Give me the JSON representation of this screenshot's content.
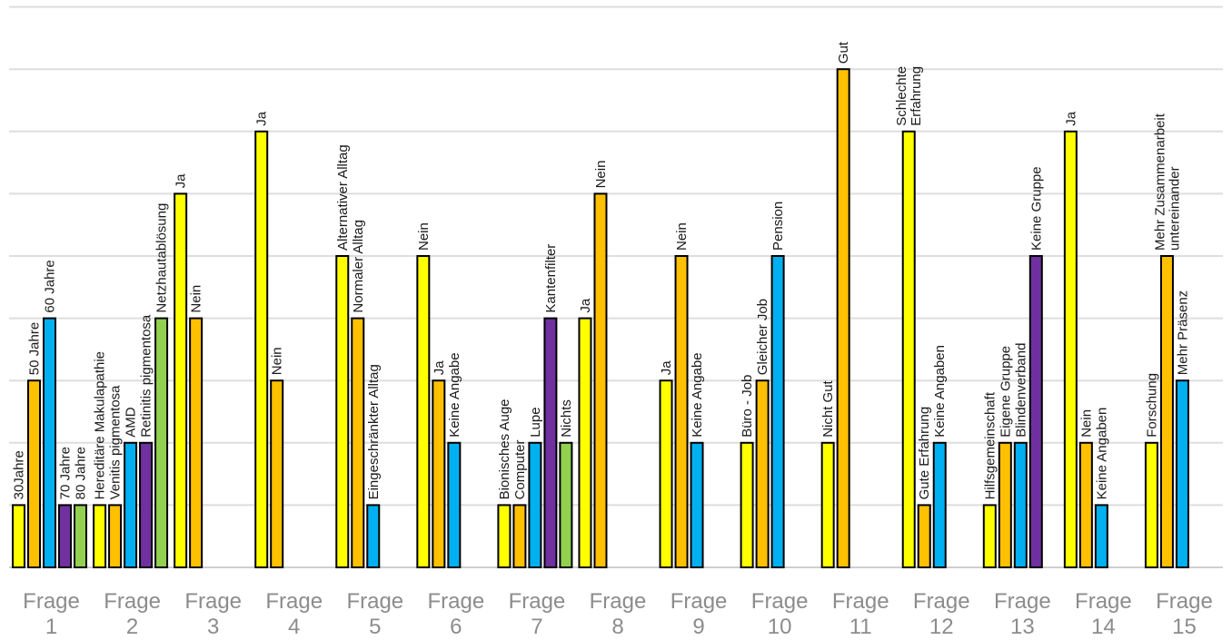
{
  "chart_data": {
    "type": "bar",
    "title": "",
    "xlabel": "",
    "ylabel": "",
    "ylim": [
      0,
      9
    ],
    "grid": true,
    "legend": "none",
    "categories": [
      [
        "Frage",
        "1"
      ],
      [
        "Frage",
        "2"
      ],
      [
        "Frage",
        "3"
      ],
      [
        "Frage",
        "4"
      ],
      [
        "Frage",
        "5"
      ],
      [
        "Frage",
        "6"
      ],
      [
        "Frage",
        "7"
      ],
      [
        "Frage",
        "8"
      ],
      [
        "Frage",
        "9"
      ],
      [
        "Frage",
        "10"
      ],
      [
        "Frage",
        "11"
      ],
      [
        "Frage",
        "12"
      ],
      [
        "Frage",
        "13"
      ],
      [
        "Frage",
        "14"
      ],
      [
        "Frage",
        "15"
      ]
    ],
    "groups": [
      {
        "bars": [
          {
            "label": [
              "30Jahre"
            ],
            "value": 1,
            "color": "#ffff00"
          },
          {
            "label": [
              "50 Jahre"
            ],
            "value": 3,
            "color": "#ffc000"
          },
          {
            "label": [
              "60 Jahre"
            ],
            "value": 4,
            "color": "#00b0f0"
          },
          {
            "label": [
              "70 Jahre"
            ],
            "value": 1,
            "color": "#7030a0"
          },
          {
            "label": [
              "80 Jahre"
            ],
            "value": 1,
            "color": "#92d050"
          }
        ]
      },
      {
        "bars": [
          {
            "label": [
              "Hereditäre Makulapathie"
            ],
            "value": 1,
            "color": "#ffff00"
          },
          {
            "label": [
              "Venitis pigmentosa"
            ],
            "value": 1,
            "color": "#ffc000"
          },
          {
            "label": [
              "AMD"
            ],
            "value": 2,
            "color": "#00b0f0"
          },
          {
            "label": [
              "Retinitis pigmentosa"
            ],
            "value": 2,
            "color": "#7030a0"
          },
          {
            "label": [
              "Netzhautablösung"
            ],
            "value": 4,
            "color": "#92d050"
          }
        ]
      },
      {
        "bars": [
          {
            "label": [
              "Ja"
            ],
            "value": 6,
            "color": "#ffff00"
          },
          {
            "label": [
              "Nein"
            ],
            "value": 4,
            "color": "#ffc000"
          }
        ]
      },
      {
        "bars": [
          {
            "label": [
              "Ja"
            ],
            "value": 7,
            "color": "#ffff00"
          },
          {
            "label": [
              "Nein"
            ],
            "value": 3,
            "color": "#ffc000"
          }
        ]
      },
      {
        "bars": [
          {
            "label": [
              "Alternativer Alltag"
            ],
            "value": 5,
            "color": "#ffff00"
          },
          {
            "label": [
              "Normaler Alltag"
            ],
            "value": 4,
            "color": "#ffc000"
          },
          {
            "label": [
              "Eingeschränkter Alltag"
            ],
            "value": 1,
            "color": "#00b0f0"
          }
        ]
      },
      {
        "bars": [
          {
            "label": [
              "Nein"
            ],
            "value": 5,
            "color": "#ffff00"
          },
          {
            "label": [
              "Ja"
            ],
            "value": 3,
            "color": "#ffc000"
          },
          {
            "label": [
              "Keine Angabe"
            ],
            "value": 2,
            "color": "#00b0f0"
          }
        ]
      },
      {
        "bars": [
          {
            "label": [
              "Bionisches Auge"
            ],
            "value": 1,
            "color": "#ffff00"
          },
          {
            "label": [
              "Computer"
            ],
            "value": 1,
            "color": "#ffc000"
          },
          {
            "label": [
              "Lupe"
            ],
            "value": 2,
            "color": "#00b0f0"
          },
          {
            "label": [
              "Kantenfilter"
            ],
            "value": 4,
            "color": "#7030a0"
          },
          {
            "label": [
              "Nichts"
            ],
            "value": 2,
            "color": "#92d050"
          }
        ]
      },
      {
        "bars": [
          {
            "label": [
              "Ja"
            ],
            "value": 4,
            "color": "#ffff00"
          },
          {
            "label": [
              "Nein"
            ],
            "value": 6,
            "color": "#ffc000"
          }
        ]
      },
      {
        "bars": [
          {
            "label": [
              "Ja"
            ],
            "value": 3,
            "color": "#ffff00"
          },
          {
            "label": [
              "Nein"
            ],
            "value": 5,
            "color": "#ffc000"
          },
          {
            "label": [
              "Keine Angabe"
            ],
            "value": 2,
            "color": "#00b0f0"
          }
        ]
      },
      {
        "bars": [
          {
            "label": [
              "Büro - Job"
            ],
            "value": 2,
            "color": "#ffff00"
          },
          {
            "label": [
              "Gleicher Job"
            ],
            "value": 3,
            "color": "#ffc000"
          },
          {
            "label": [
              "Pension"
            ],
            "value": 5,
            "color": "#00b0f0"
          }
        ]
      },
      {
        "bars": [
          {
            "label": [
              "Nicht Gut"
            ],
            "value": 2,
            "color": "#ffff00"
          },
          {
            "label": [
              "Gut"
            ],
            "value": 8,
            "color": "#ffc000"
          }
        ]
      },
      {
        "bars": [
          {
            "label": [
              "Schlechte",
              "Erfahrung"
            ],
            "value": 7,
            "color": "#ffff00"
          },
          {
            "label": [
              "Gute Erfahrung"
            ],
            "value": 1,
            "color": "#ffc000"
          },
          {
            "label": [
              "Keine Angaben"
            ],
            "value": 2,
            "color": "#00b0f0"
          }
        ]
      },
      {
        "bars": [
          {
            "label": [
              "Hilfsgemeinschaft"
            ],
            "value": 1,
            "color": "#ffff00"
          },
          {
            "label": [
              "Eigene Gruppe"
            ],
            "value": 2,
            "color": "#ffc000"
          },
          {
            "label": [
              "Blindenverband"
            ],
            "value": 2,
            "color": "#00b0f0"
          },
          {
            "label": [
              "Keine Gruppe"
            ],
            "value": 5,
            "color": "#7030a0"
          }
        ]
      },
      {
        "bars": [
          {
            "label": [
              "Ja"
            ],
            "value": 7,
            "color": "#ffff00"
          },
          {
            "label": [
              "Nein"
            ],
            "value": 2,
            "color": "#ffc000"
          },
          {
            "label": [
              "Keine Angaben"
            ],
            "value": 1,
            "color": "#00b0f0"
          }
        ]
      },
      {
        "bars": [
          {
            "label": [
              "Forschung"
            ],
            "value": 2,
            "color": "#ffff00"
          },
          {
            "label": [
              "Mehr Zusammenarbeit",
              "untereinander"
            ],
            "value": 5,
            "color": "#ffc000"
          },
          {
            "label": [
              "Mehr Präsenz"
            ],
            "value": 3,
            "color": "#00b0f0"
          }
        ]
      }
    ]
  }
}
